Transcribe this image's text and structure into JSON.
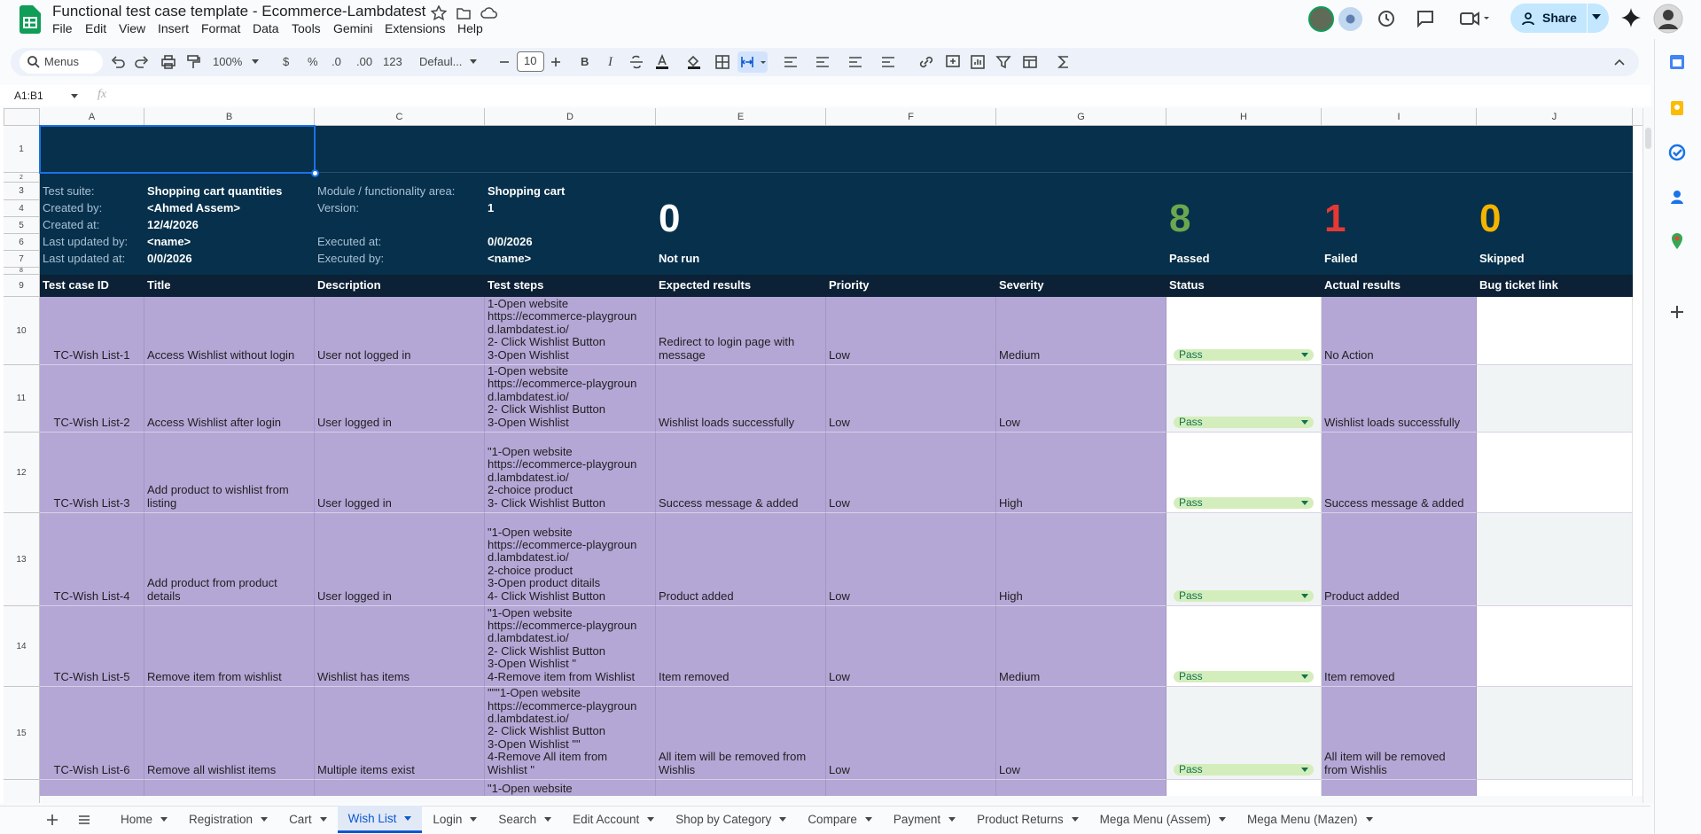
{
  "header": {
    "title": "Functional test case template - Ecommerce-Lambdatest",
    "share": "Share",
    "menus": [
      "File",
      "Edit",
      "View",
      "Insert",
      "Format",
      "Data",
      "Tools",
      "Gemini",
      "Extensions",
      "Help"
    ]
  },
  "toolbar": {
    "search": "Menus",
    "zoom": "100%",
    "currency": "$",
    "percent": "%",
    "dec_less": ".0",
    "dec_more": ".00",
    "format": "123",
    "font": "Defaul...",
    "font_size": "10",
    "bold": "B",
    "italic": "I"
  },
  "formula_bar": {
    "cell_ref": "A1:B1",
    "fx": "fx"
  },
  "columns": [
    "A",
    "B",
    "C",
    "D",
    "E",
    "F",
    "G",
    "H",
    "I",
    "J"
  ],
  "row_numbers": [
    "1",
    "2",
    "3",
    "4",
    "5",
    "6",
    "7",
    "8",
    "9",
    "10",
    "11",
    "12",
    "13",
    "14",
    "15"
  ],
  "info_left": [
    {
      "label": "Test suite:",
      "value": "Shopping cart quantities"
    },
    {
      "label": "Created by:",
      "value": "<Ahmed Assem>"
    },
    {
      "label": "Created at:",
      "value": "12/4/2026"
    },
    {
      "label": "Last updated by:",
      "value": "<name>"
    },
    {
      "label": "Last updated at:",
      "value": "0/0/2026"
    }
  ],
  "info_middle": [
    {
      "label": "Module / functionality area:",
      "value": "Shopping cart"
    },
    {
      "label": "Version:",
      "value": "1"
    },
    {
      "label": "Executed at:",
      "value": "0/0/2026"
    },
    {
      "label": "Executed by:",
      "value": "<name>"
    }
  ],
  "summary": [
    {
      "count": "0",
      "label": "Not run",
      "color": "#ffffff"
    },
    {
      "count": "8",
      "label": "Passed",
      "color": "#6aa84f"
    },
    {
      "count": "1",
      "label": "Failed",
      "color": "#e53935"
    },
    {
      "count": "0",
      "label": "Skipped",
      "color": "#f4b400"
    }
  ],
  "table": {
    "headers": [
      "Test case ID",
      "Title",
      "Description",
      "Test steps",
      "Expected results",
      "Priority",
      "Severity",
      "Status",
      "Actual results",
      "Bug ticket link"
    ],
    "rows": [
      {
        "id": "TC-Wish List-1",
        "title": "Access Wishlist without login",
        "description": "User not logged in",
        "steps": "1-Open  website\nhttps://ecommerce-playgroun\nd.lambdatest.io/\n2- Click  Wishlist Button\n3-Open Wishlist",
        "expected": "Redirect to login page with\nmessage",
        "priority": "Low",
        "severity": "Medium",
        "status": "Pass",
        "actual": "No Action"
      },
      {
        "id": "TC-Wish List-2",
        "title": "Access Wishlist after login",
        "description": "User logged in",
        "steps": "1-Open  website\nhttps://ecommerce-playgroun\nd.lambdatest.io/\n2- Click  Wishlist Button\n3-Open Wishlist",
        "expected": "Wishlist loads successfully",
        "priority": "Low",
        "severity": "Low",
        "status": "Pass",
        "actual": "Wishlist loads successfully"
      },
      {
        "id": "TC-Wish List-3",
        "title": "Add product to wishlist from\nlisting",
        "description": "User logged in",
        "steps": "\"1-Open  website\nhttps://ecommerce-playgroun\nd.lambdatest.io/\n2-choice product\n3- Click  Wishlist Button",
        "expected": "Success message & added",
        "priority": "Low",
        "severity": "High",
        "status": "Pass",
        "actual": "Success message & added"
      },
      {
        "id": "TC-Wish List-4",
        "title": "Add product from product\ndetails",
        "description": "User logged in",
        "steps": "\"1-Open  website\nhttps://ecommerce-playgroun\nd.lambdatest.io/\n2-choice product\n3-Open product ditails\n4- Click  Wishlist Button",
        "expected": "Product added",
        "priority": "Low",
        "severity": "High",
        "status": "Pass",
        "actual": "Product added"
      },
      {
        "id": "TC-Wish List-5",
        "title": "Remove item from wishlist",
        "description": "Wishlist has items",
        "steps": "\"1-Open  website\nhttps://ecommerce-playgroun\nd.lambdatest.io/\n2- Click  Wishlist Button\n3-Open Wishlist \"\n4-Remove item from Wishlist",
        "expected": "Item removed",
        "priority": "Low",
        "severity": "Medium",
        "status": "Pass",
        "actual": "Item removed"
      },
      {
        "id": "TC-Wish List-6",
        "title": "Remove all wishlist items",
        "description": "Multiple items exist",
        "steps": "\"\"\"1-Open  website\nhttps://ecommerce-playgroun\nd.lambdatest.io/\n2- Click  Wishlist Button\n3-Open Wishlist \"\"\n4-Remove  All item from\nWishlist \"",
        "expected": "All item  will be removed from\nWishlis",
        "priority": "Low",
        "severity": "Low",
        "status": "Pass",
        "actual": "All item  will be removed\nfrom Wishlis"
      }
    ],
    "partial_row_steps": "\"1-Open  website"
  },
  "tabs": [
    "Home",
    "Registration",
    "Cart",
    "Wish List",
    "Login",
    "Search",
    "Edit Account",
    "Shop by Category",
    "Compare",
    "Payment",
    "Product Returns",
    "Mega Menu (Assem)",
    "Mega Menu (Mazen)"
  ],
  "active_tab": "Wish List"
}
